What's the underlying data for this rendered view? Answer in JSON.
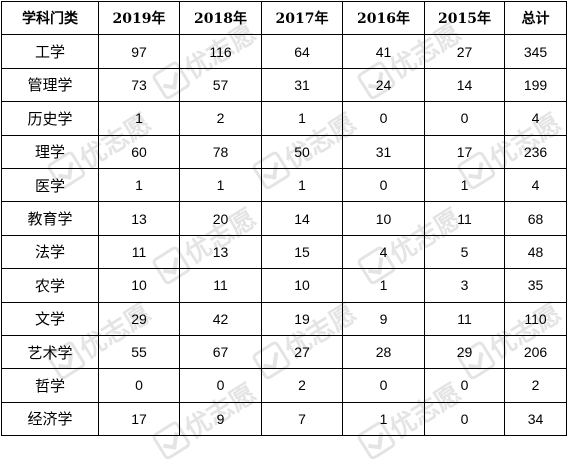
{
  "table": {
    "headers": [
      "学科门类",
      "2019年",
      "2018年",
      "2017年",
      "2016年",
      "2015年",
      "总计"
    ],
    "rows": [
      [
        "工学",
        "97",
        "116",
        "64",
        "41",
        "27",
        "345"
      ],
      [
        "管理学",
        "73",
        "57",
        "31",
        "24",
        "14",
        "199"
      ],
      [
        "历史学",
        "1",
        "2",
        "1",
        "0",
        "0",
        "4"
      ],
      [
        "理学",
        "60",
        "78",
        "50",
        "31",
        "17",
        "236"
      ],
      [
        "医学",
        "1",
        "1",
        "1",
        "0",
        "1",
        "4"
      ],
      [
        "教育学",
        "13",
        "20",
        "14",
        "10",
        "11",
        "68"
      ],
      [
        "法学",
        "11",
        "13",
        "15",
        "4",
        "5",
        "48"
      ],
      [
        "农学",
        "10",
        "11",
        "10",
        "1",
        "3",
        "35"
      ],
      [
        "文学",
        "29",
        "42",
        "19",
        "9",
        "11",
        "110"
      ],
      [
        "艺术学",
        "55",
        "67",
        "27",
        "28",
        "29",
        "206"
      ],
      [
        "哲学",
        "0",
        "0",
        "2",
        "0",
        "0",
        "2"
      ],
      [
        "经济学",
        "17",
        "9",
        "7",
        "1",
        "0",
        "34"
      ]
    ]
  },
  "watermark": {
    "text": "优志愿"
  }
}
